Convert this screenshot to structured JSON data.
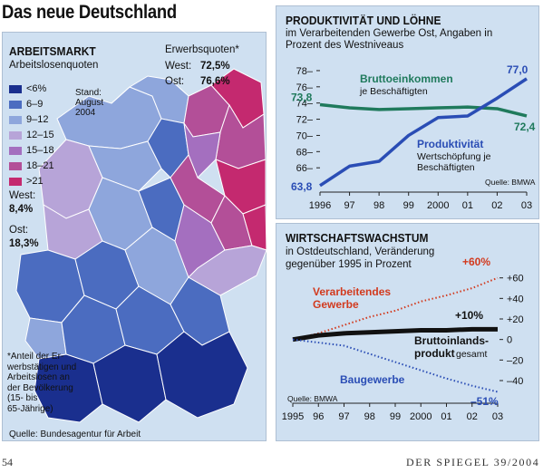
{
  "title": "Das neue Deutschland",
  "map": {
    "title": "ARBEITSMARKT",
    "subtitle": "Arbeitslosenquoten",
    "legend": [
      {
        "label": "<6%",
        "color": "#1a2f8e"
      },
      {
        "label": "6–9",
        "color": "#4b6cc0"
      },
      {
        "label": "9–12",
        "color": "#8ea6dc"
      },
      {
        "label": "12–15",
        "color": "#b7a4d8"
      },
      {
        "label": "15–18",
        "color": "#a46fbf"
      },
      {
        "label": "18–21",
        "color": "#b34f98"
      },
      {
        "label": ">21",
        "color": "#c4296f"
      }
    ],
    "stand": "Stand:",
    "stand_date_1": "August",
    "stand_date_2": "2004",
    "erwerbsquoten_title": "Erwerbsquoten*",
    "west_label": "West:",
    "west_value": "72,5%",
    "ost_label": "Ost:",
    "ost_value": "76,6%",
    "west_arbeitslos_label": "West:",
    "west_arbeitslos_value": "8,4%",
    "ost_arbeitslos_label": "Ost:",
    "ost_arbeitslos_value": "18,3%",
    "footnote_lines": [
      "*Anteil der Er-",
      "werbstätigen und",
      "Arbeitslosen an",
      "der Bevölkerung",
      "(15- bis",
      "65-Jährige)"
    ],
    "source": "Quelle: Bundesagentur für Arbeit"
  },
  "productivity": {
    "title": "PRODUKTIVITÄT UND LÖHNE",
    "subtitle_lines": [
      "im Verarbeitenden Gewerbe Ost, Angaben in",
      "Prozent des Westniveaus"
    ],
    "source": "Quelle: BMWA",
    "annotations": {
      "brutto_title": "Bruttoeinkommen",
      "brutto_sub": "je Beschäftigten",
      "prod_title": "Produktivität",
      "prod_sub_1": "Wertschöpfung je",
      "prod_sub_2": "Beschäftigten",
      "brutto_start": "73,8",
      "brutto_end": "72,4",
      "prod_start": "63,8",
      "prod_end": "77,0"
    }
  },
  "growth": {
    "title": "WIRTSCHAFTSWACHSTUM",
    "subtitle_lines": [
      "in Ostdeutschland, Veränderung",
      "gegenüber 1995 in Prozent"
    ],
    "source": "Quelle: BMWA",
    "annotations": {
      "verarb_1": "Verarbeitendes",
      "verarb_2": "Gewerbe",
      "bip_1": "Bruttoinlands-",
      "bip_2": "produkt",
      "bip_3": "gesamt",
      "bau": "Baugewerbe",
      "verarb_end": "+60%",
      "bip_end": "+10%",
      "bau_end": "–51%"
    }
  },
  "footer": {
    "page_number": "54",
    "magazine": "DER SPIEGEL 39/2004"
  },
  "chart_data": [
    {
      "type": "line",
      "title": "PRODUKTIVITÄT UND LÖHNE",
      "x": [
        "1996",
        "97",
        "98",
        "99",
        "2000",
        "01",
        "02",
        "03"
      ],
      "ylim": [
        63,
        79
      ],
      "yticks": [
        66,
        68,
        70,
        72,
        74,
        76,
        78
      ],
      "series": [
        {
          "name": "Bruttoeinkommen je Beschäftigten",
          "color": "#1f7a5c",
          "values": [
            73.8,
            73.4,
            73.2,
            73.3,
            73.4,
            73.5,
            73.3,
            72.4
          ]
        },
        {
          "name": "Produktivität Wertschöpfung je Beschäftigten",
          "color": "#2a4db5",
          "values": [
            63.8,
            66.2,
            66.8,
            70.0,
            72.2,
            72.4,
            74.6,
            77.0
          ]
        }
      ]
    },
    {
      "type": "line",
      "title": "WIRTSCHAFTSWACHSTUM",
      "x": [
        "1995",
        "96",
        "97",
        "98",
        "99",
        "2000",
        "01",
        "02",
        "03"
      ],
      "ylim": [
        -55,
        65
      ],
      "yticks": [
        -40,
        -20,
        0,
        20,
        40,
        60
      ],
      "ytick_labels": [
        "–40",
        "–20",
        "0",
        "+20",
        "+40",
        "+60"
      ],
      "series": [
        {
          "name": "Verarbeitendes Gewerbe",
          "color": "#d23a1e",
          "style": "dotted",
          "values": [
            0,
            6,
            14,
            22,
            28,
            37,
            43,
            50,
            60
          ]
        },
        {
          "name": "Bruttoinlandsprodukt gesamt",
          "color": "#111111",
          "style": "solid",
          "values": [
            0,
            4,
            6,
            7,
            8,
            9,
            9,
            10,
            10
          ]
        },
        {
          "name": "Baugewerbe",
          "color": "#2a4db5",
          "style": "dotted",
          "values": [
            0,
            -3,
            -6,
            -14,
            -22,
            -30,
            -38,
            -45,
            -51
          ]
        }
      ]
    }
  ]
}
